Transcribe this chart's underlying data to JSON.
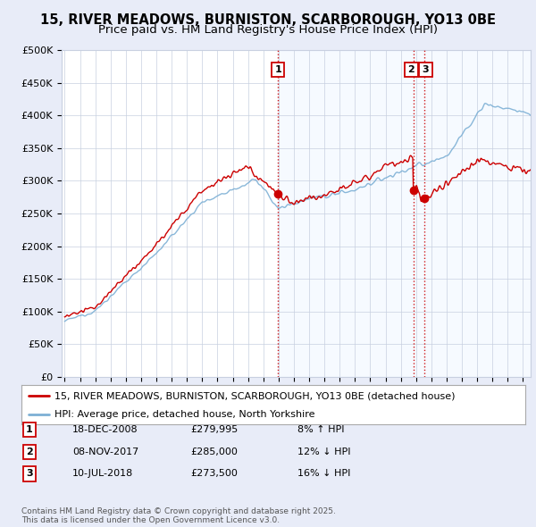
{
  "title": "15, RIVER MEADOWS, BURNISTON, SCARBOROUGH, YO13 0BE",
  "subtitle": "Price paid vs. HM Land Registry's House Price Index (HPI)",
  "ylabel_ticks": [
    "£0",
    "£50K",
    "£100K",
    "£150K",
    "£200K",
    "£250K",
    "£300K",
    "£350K",
    "£400K",
    "£450K",
    "£500K"
  ],
  "ytick_values": [
    0,
    50000,
    100000,
    150000,
    200000,
    250000,
    300000,
    350000,
    400000,
    450000,
    500000
  ],
  "ylim": [
    0,
    500000
  ],
  "xlim_start": 1994.8,
  "xlim_end": 2025.5,
  "sale_dates": [
    2008.96,
    2017.84,
    2018.53
  ],
  "sale_prices": [
    279995,
    285000,
    273500
  ],
  "sale_labels": [
    "1",
    "2",
    "3"
  ],
  "vline_color": "#cc0000",
  "red_line_color": "#cc0000",
  "blue_line_color": "#7db0d5",
  "shade_color": "#ddeeff",
  "legend_label_red": "15, RIVER MEADOWS, BURNISTON, SCARBOROUGH, YO13 0BE (detached house)",
  "legend_label_blue": "HPI: Average price, detached house, North Yorkshire",
  "table_rows": [
    [
      "1",
      "18-DEC-2008",
      "£279,995",
      "8% ↑ HPI"
    ],
    [
      "2",
      "08-NOV-2017",
      "£285,000",
      "12% ↓ HPI"
    ],
    [
      "3",
      "10-JUL-2018",
      "£273,500",
      "16% ↓ HPI"
    ]
  ],
  "footer": "Contains HM Land Registry data © Crown copyright and database right 2025.\nThis data is licensed under the Open Government Licence v3.0.",
  "background_color": "#e8ecf8",
  "plot_bg_color": "#ffffff",
  "grid_color": "#c8d0e0",
  "title_fontsize": 10.5,
  "subtitle_fontsize": 9.5
}
